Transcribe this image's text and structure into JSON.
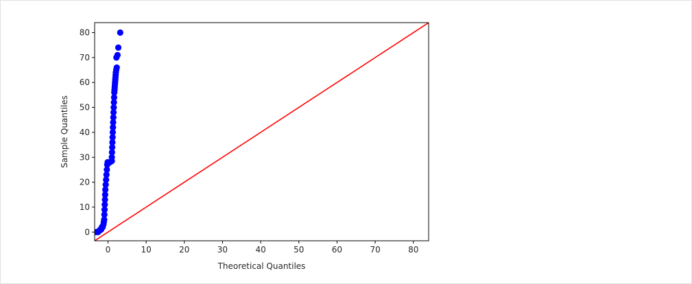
{
  "chart_data": {
    "type": "scatter",
    "xlabel": "Theoretical Quantiles",
    "ylabel": "Sample Quantiles",
    "xlim": [
      -3.5,
      84
    ],
    "ylim": [
      -3.5,
      84
    ],
    "xticks": [
      "0",
      "10",
      "20",
      "30",
      "40",
      "50",
      "60",
      "70",
      "80"
    ],
    "yticks": [
      "0",
      "10",
      "20",
      "30",
      "40",
      "50",
      "60",
      "70",
      "80"
    ],
    "grid": false,
    "series": [
      {
        "kind": "points",
        "color": "#0000ff",
        "points": [
          [
            -3.0,
            0.0
          ],
          [
            -2.6,
            0.0
          ],
          [
            -2.3,
            0.5
          ],
          [
            -2.0,
            1.0
          ],
          [
            -1.8,
            1.0
          ],
          [
            -1.6,
            2.0
          ],
          [
            -1.4,
            2.0
          ],
          [
            -1.2,
            3.0
          ],
          [
            -1.1,
            4.0
          ],
          [
            -1.0,
            5.0
          ],
          [
            -0.95,
            7.0
          ],
          [
            -0.9,
            9.0
          ],
          [
            -0.85,
            11.0
          ],
          [
            -0.8,
            13.0
          ],
          [
            -0.75,
            15.0
          ],
          [
            -0.7,
            17.0
          ],
          [
            -0.6,
            19.0
          ],
          [
            -0.5,
            21.0
          ],
          [
            -0.4,
            23.0
          ],
          [
            -0.3,
            25.0
          ],
          [
            -0.2,
            27.0
          ],
          [
            -0.1,
            28.0
          ],
          [
            0.5,
            28.0
          ],
          [
            1.0,
            28.5
          ],
          [
            1.0,
            30.0
          ],
          [
            1.05,
            32.0
          ],
          [
            1.1,
            34.0
          ],
          [
            1.15,
            36.0
          ],
          [
            1.2,
            38.0
          ],
          [
            1.25,
            40.0
          ],
          [
            1.3,
            42.0
          ],
          [
            1.35,
            44.0
          ],
          [
            1.4,
            46.0
          ],
          [
            1.45,
            48.0
          ],
          [
            1.5,
            50.0
          ],
          [
            1.55,
            52.0
          ],
          [
            1.6,
            54.0
          ],
          [
            1.65,
            56.0
          ],
          [
            1.7,
            57.0
          ],
          [
            1.75,
            58.0
          ],
          [
            1.8,
            59.0
          ],
          [
            1.85,
            60.0
          ],
          [
            1.9,
            61.0
          ],
          [
            1.95,
            62.0
          ],
          [
            2.0,
            63.0
          ],
          [
            2.05,
            64.0
          ],
          [
            2.15,
            65.0
          ],
          [
            2.3,
            66.0
          ],
          [
            2.2,
            70.0
          ],
          [
            2.5,
            71.0
          ],
          [
            2.7,
            74.0
          ],
          [
            3.2,
            80.0
          ]
        ]
      },
      {
        "kind": "line",
        "color": "#ff0000",
        "points": [
          [
            -3.5,
            -3.5
          ],
          [
            84,
            84
          ]
        ]
      }
    ]
  }
}
